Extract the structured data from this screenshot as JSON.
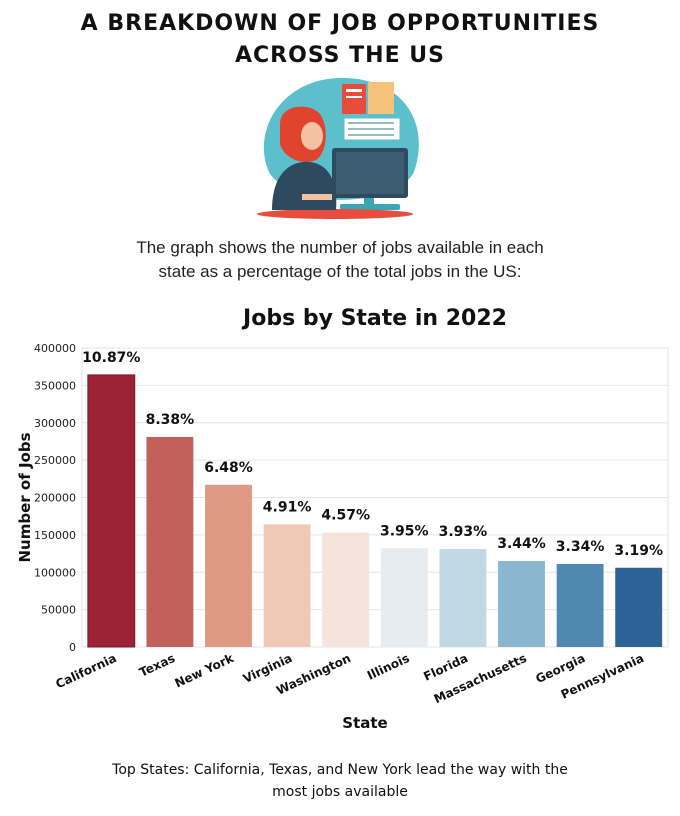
{
  "header": {
    "title_line1": "A BREAKDOWN OF JOB OPPORTUNITIES",
    "title_line2": "ACROSS THE US"
  },
  "intro": {
    "line1": "The graph shows the number of jobs available in each",
    "line2": "state as a percentage of the total jobs in the US:"
  },
  "illustration": {
    "icon": "woman-at-computer-on-phone-illustration",
    "colors": {
      "background_blob": "#5bbfcc",
      "hair": "#e0442e",
      "monitor": "#2f4a5e",
      "desk": "#e84c3d"
    }
  },
  "chart_data": {
    "type": "bar",
    "title": "Jobs by State in 2022",
    "xlabel": "State",
    "ylabel": "Number of Jobs",
    "ylim": [
      0,
      400000
    ],
    "yticks": [
      0,
      50000,
      100000,
      150000,
      200000,
      250000,
      300000,
      350000,
      400000
    ],
    "grid": true,
    "categories": [
      "California",
      "Texas",
      "New York",
      "Virginia",
      "Washington",
      "Illinois",
      "Florida",
      "Massachusetts",
      "Georgia",
      "Pennsylvania"
    ],
    "values": [
      364000,
      281000,
      217000,
      164000,
      153000,
      132000,
      131000,
      115000,
      111000,
      106000
    ],
    "labels": [
      "10.87%",
      "8.38%",
      "6.48%",
      "4.91%",
      "4.57%",
      "3.95%",
      "3.93%",
      "3.44%",
      "3.34%",
      "3.19%"
    ],
    "colors": [
      "#9b2335",
      "#c0625a",
      "#de9a84",
      "#f0c9b6",
      "#f6e4dc",
      "#e6ecef",
      "#c0d8e4",
      "#8ab6cf",
      "#4f89b2",
      "#2d6296"
    ]
  },
  "footer": {
    "line1": "Top States: California, Texas, and New York lead the way with the",
    "line2": "most jobs available"
  }
}
